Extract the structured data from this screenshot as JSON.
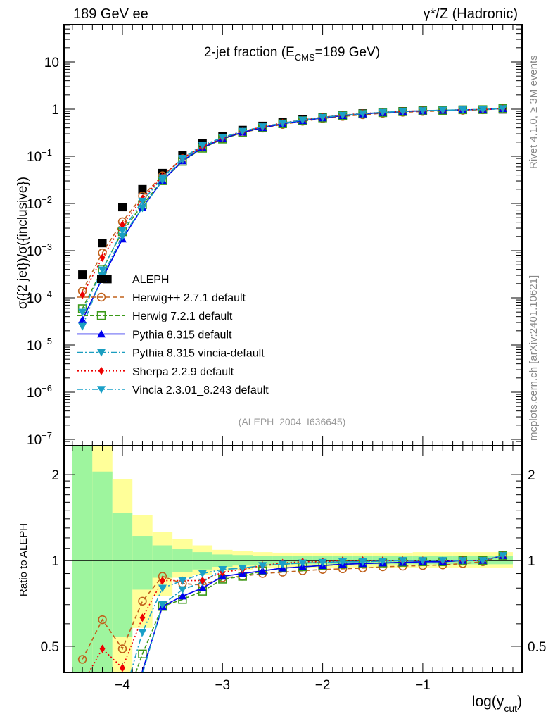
{
  "header": {
    "left": "189 GeV ee",
    "right": "γ*/Z (Hadronic)"
  },
  "side_labels": {
    "top": "Rivet 4.1.0, ≥ 3M events",
    "bottom": "mcplots.cern.ch [arXiv:2401.10621]"
  },
  "analysis_id": "(ALEPH_2004_I636645)",
  "colors": {
    "green_band": "#9ef59e",
    "yellow_band": "#ffff99"
  },
  "chart_data": {
    "type": "line",
    "title": "2-jet fraction (E_CMS=189 GeV)",
    "title_parts": {
      "pre": "2-jet fraction (E",
      "sub": "CMS",
      "post": "=189 GeV)"
    },
    "ylabel": "σ({2 jet})/σ({inclusive})",
    "ratio_ylabel": "Ratio to ALEPH",
    "xlabel": {
      "pre": "log(y",
      "sub": "cut",
      "post": ")"
    },
    "xlim": [
      -4.58,
      0.0
    ],
    "ylim_log10": [
      -7.1,
      1.8
    ],
    "ratio_ylim": [
      0.405,
      2.53
    ],
    "x_ticks": [
      -4,
      -3,
      -2,
      -1
    ],
    "x_tick_labels": [
      "−4",
      "−3",
      "−2",
      "−1"
    ],
    "y_ticks": [
      {
        "exp": 1,
        "label": "10",
        "sup": ""
      },
      {
        "exp": 0,
        "label": "1",
        "sup": ""
      },
      {
        "exp": -1,
        "label": "10",
        "sup": "−1"
      },
      {
        "exp": -2,
        "label": "10",
        "sup": "−2"
      },
      {
        "exp": -3,
        "label": "10",
        "sup": "−3"
      },
      {
        "exp": -4,
        "label": "10",
        "sup": "−4"
      },
      {
        "exp": -5,
        "label": "10",
        "sup": "−5"
      },
      {
        "exp": -6,
        "label": "10",
        "sup": "−6"
      },
      {
        "exp": -7,
        "label": "10",
        "sup": "−7"
      }
    ],
    "ratio_ticks": [
      {
        "v": 2,
        "label": "2"
      },
      {
        "v": 1,
        "label": "1"
      },
      {
        "v": 0.5,
        "label": "0.5"
      }
    ],
    "x": [
      -4.4,
      -4.2,
      -4.0,
      -3.8,
      -3.6,
      -3.4,
      -3.2,
      -3.0,
      -2.8,
      -2.6,
      -2.4,
      -2.2,
      -2.0,
      -1.8,
      -1.6,
      -1.4,
      -1.2,
      -1.0,
      -0.8,
      -0.6,
      -0.4,
      -0.2
    ],
    "data": {
      "name": "ALEPH",
      "values": [
        0.00031,
        0.00145,
        0.0084,
        0.02,
        0.044,
        0.107,
        0.19,
        0.27,
        0.36,
        0.44,
        0.52,
        0.6,
        0.68,
        0.75,
        0.81,
        0.86,
        0.9,
        0.93,
        0.95,
        0.97,
        0.98,
        0.99
      ],
      "extra_points": [
        {
          "x": -4.15,
          "y": 0.00025
        }
      ]
    },
    "bands": {
      "green_up": [
        3,
        2.05,
        1.47,
        1.22,
        1.13,
        1.095,
        1.07,
        1.05,
        1.045,
        1.04,
        1.035,
        1.035,
        1.035,
        1.035,
        1.035,
        1.035,
        1.035,
        1.035,
        1.04,
        1.04,
        1.04,
        1.04
      ],
      "green_dn": [
        0.3,
        0.3,
        0.54,
        0.79,
        0.87,
        0.91,
        0.93,
        0.95,
        0.96,
        0.965,
        0.97,
        0.97,
        0.97,
        0.97,
        0.97,
        0.97,
        0.97,
        0.97,
        0.97,
        0.97,
        0.97,
        0.97
      ],
      "yellow_up": [
        3,
        3,
        1.93,
        1.44,
        1.26,
        1.19,
        1.13,
        1.09,
        1.08,
        1.07,
        1.065,
        1.06,
        1.06,
        1.06,
        1.065,
        1.065,
        1.065,
        1.07,
        1.07,
        1.07,
        1.07,
        1.07
      ],
      "yellow_dn": [
        0.3,
        0.3,
        0.3,
        0.58,
        0.75,
        0.87,
        0.89,
        0.92,
        0.93,
        0.94,
        0.945,
        0.945,
        0.945,
        0.945,
        0.945,
        0.945,
        0.945,
        0.945,
        0.945,
        0.945,
        0.945,
        0.945
      ]
    },
    "series": [
      {
        "name": "Herwig++ 2.7.1 default",
        "color": "#c0601a",
        "dash": "6,4",
        "marker": "open-circle",
        "ratio": [
          0.45,
          0.62,
          0.49,
          0.72,
          0.88,
          0.83,
          0.82,
          0.87,
          0.88,
          0.9,
          0.91,
          0.92,
          0.93,
          0.935,
          0.94,
          0.95,
          0.955,
          0.96,
          0.965,
          0.975,
          0.99,
          1.04
        ]
      },
      {
        "name": "Herwig 7.2.1 default",
        "color": "#3c9a1a",
        "dash": "6,3",
        "marker": "open-square",
        "ratio": [
          0.19,
          0.28,
          0.3,
          0.47,
          0.69,
          0.73,
          0.78,
          0.86,
          0.88,
          0.92,
          0.94,
          0.95,
          0.96,
          0.97,
          0.975,
          0.98,
          0.985,
          0.99,
          0.99,
          1.0,
          1.0,
          1.04
        ]
      },
      {
        "name": "Pythia 8.315 default",
        "color": "#0000ee",
        "dash": "",
        "marker": "up-triangle",
        "ratio": [
          0.11,
          0.18,
          0.21,
          0.41,
          0.69,
          0.75,
          0.8,
          0.88,
          0.9,
          0.92,
          0.94,
          0.95,
          0.96,
          0.97,
          0.975,
          0.98,
          0.985,
          0.99,
          0.99,
          1.0,
          1.0,
          1.04
        ]
      },
      {
        "name": "Pythia 8.315 vincia-default",
        "color": "#1a9ec0",
        "dash": "8,3,2,3",
        "marker": "down-triangle",
        "ratio": [
          0.08,
          0.2,
          0.24,
          0.4,
          0.7,
          0.79,
          0.84,
          0.93,
          0.94,
          0.96,
          0.97,
          0.98,
          0.985,
          0.99,
          0.99,
          0.995,
          1.0,
          1.0,
          1.0,
          1.0,
          1.0,
          1.04
        ]
      },
      {
        "name": "Sherpa 2.2.9 default",
        "color": "#ee0000",
        "dash": "2,3",
        "marker": "diamond",
        "ratio": [
          0.37,
          0.49,
          0.42,
          0.63,
          0.85,
          0.85,
          0.85,
          0.91,
          0.93,
          0.96,
          0.98,
          0.99,
          0.99,
          1.0,
          1.0,
          1.0,
          1.0,
          1.0,
          1.0,
          1.0,
          1.0,
          1.04
        ]
      },
      {
        "name": "Vincia 2.3.01_8.243 default",
        "color": "#1aa0c8",
        "dash": "8,3,2,3,2,3",
        "marker": "down-triangle",
        "ratio": [
          0.16,
          0.27,
          0.32,
          0.56,
          0.8,
          0.85,
          0.9,
          0.93,
          0.94,
          0.96,
          0.97,
          0.98,
          0.985,
          0.99,
          0.99,
          0.995,
          1.0,
          1.0,
          1.0,
          1.0,
          1.0,
          1.04
        ]
      }
    ],
    "legend_placement": "left-center"
  }
}
